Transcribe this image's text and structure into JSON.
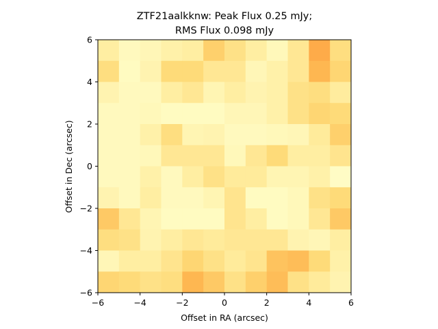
{
  "chart_data": {
    "type": "heatmap",
    "title_line1": "ZTF21aalkknw: Peak Flux 0.25 mJy;",
    "title_line2": "RMS Flux 0.098 mJy",
    "xlabel": "Offset in RA (arcsec)",
    "ylabel": "Offset in Dec (arcsec)",
    "xlim": [
      -6,
      6
    ],
    "ylim": [
      -6,
      6
    ],
    "xticks": [
      -6,
      -4,
      -2,
      0,
      2,
      4,
      6
    ],
    "yticks": [
      -6,
      -4,
      -2,
      0,
      2,
      4,
      6
    ],
    "xtick_labels": [
      "−6",
      "−4",
      "−2",
      "0",
      "2",
      "4",
      "6"
    ],
    "ytick_labels": [
      "−6",
      "−4",
      "−2",
      "0",
      "2",
      "4",
      "6"
    ],
    "grid": false,
    "colormap": "YlOrRd",
    "vmin": 0,
    "vmax": 1,
    "grid_size": 12,
    "values": [
      [
        0.12,
        0.04,
        0.06,
        0.1,
        0.12,
        0.28,
        0.2,
        0.12,
        0.05,
        0.16,
        0.4,
        0.22
      ],
      [
        0.22,
        0.03,
        0.08,
        0.24,
        0.24,
        0.16,
        0.16,
        0.06,
        0.1,
        0.16,
        0.36,
        0.26
      ],
      [
        0.08,
        0.04,
        0.04,
        0.12,
        0.16,
        0.07,
        0.12,
        0.08,
        0.1,
        0.2,
        0.22,
        0.13
      ],
      [
        0.04,
        0.04,
        0.05,
        0.03,
        0.03,
        0.03,
        0.06,
        0.06,
        0.1,
        0.2,
        0.26,
        0.24
      ],
      [
        0.04,
        0.04,
        0.1,
        0.22,
        0.07,
        0.08,
        0.04,
        0.04,
        0.05,
        0.06,
        0.14,
        0.28
      ],
      [
        0.04,
        0.04,
        0.05,
        0.16,
        0.16,
        0.16,
        0.05,
        0.16,
        0.24,
        0.12,
        0.12,
        0.18
      ],
      [
        0.04,
        0.04,
        0.1,
        0.04,
        0.12,
        0.2,
        0.14,
        0.14,
        0.07,
        0.07,
        0.1,
        0.02
      ],
      [
        0.08,
        0.04,
        0.12,
        0.04,
        0.04,
        0.07,
        0.18,
        0.03,
        0.03,
        0.05,
        0.2,
        0.24
      ],
      [
        0.3,
        0.16,
        0.07,
        0.03,
        0.03,
        0.03,
        0.18,
        0.12,
        0.03,
        0.05,
        0.16,
        0.3
      ],
      [
        0.22,
        0.2,
        0.08,
        0.12,
        0.16,
        0.14,
        0.16,
        0.16,
        0.16,
        0.08,
        0.06,
        0.12
      ],
      [
        0.06,
        0.12,
        0.12,
        0.18,
        0.26,
        0.2,
        0.14,
        0.18,
        0.32,
        0.34,
        0.24,
        0.1
      ],
      [
        0.26,
        0.24,
        0.2,
        0.22,
        0.36,
        0.3,
        0.2,
        0.28,
        0.34,
        0.2,
        0.14,
        0.08
      ]
    ]
  }
}
